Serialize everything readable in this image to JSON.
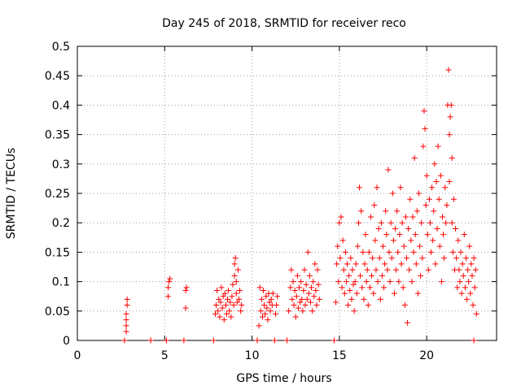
{
  "chart_data": {
    "type": "scatter",
    "title": "Day 245 of 2018, SRMTID for receiver reco",
    "xlabel": "GPS time / hours",
    "ylabel": "SRMTID / TECUs",
    "xlim": [
      0,
      24
    ],
    "ylim": [
      0,
      0.5
    ],
    "xticks": [
      0,
      5,
      10,
      15,
      20
    ],
    "yticks": [
      0,
      0.05,
      0.1,
      0.15,
      0.2,
      0.25,
      0.3,
      0.35,
      0.4,
      0.45,
      0.5
    ],
    "grid": true,
    "marker": "+",
    "color": "#ff0000",
    "series": [
      {
        "name": "SRMTID",
        "points": [
          [
            2.7,
            0.0
          ],
          [
            2.8,
            0.015
          ],
          [
            2.8,
            0.025
          ],
          [
            2.8,
            0.035
          ],
          [
            2.8,
            0.045
          ],
          [
            2.85,
            0.06
          ],
          [
            2.85,
            0.07
          ],
          [
            4.2,
            0.0
          ],
          [
            5.1,
            0.0
          ],
          [
            5.2,
            0.075
          ],
          [
            5.2,
            0.09
          ],
          [
            5.25,
            0.1
          ],
          [
            5.3,
            0.105
          ],
          [
            6.1,
            0.0
          ],
          [
            6.2,
            0.055
          ],
          [
            6.2,
            0.085
          ],
          [
            6.25,
            0.09
          ],
          [
            7.8,
            0.0
          ],
          [
            7.9,
            0.045
          ],
          [
            7.95,
            0.06
          ],
          [
            8.0,
            0.085
          ],
          [
            8.05,
            0.05
          ],
          [
            8.1,
            0.07
          ],
          [
            8.15,
            0.04
          ],
          [
            8.2,
            0.065
          ],
          [
            8.25,
            0.09
          ],
          [
            8.3,
            0.055
          ],
          [
            8.35,
            0.075
          ],
          [
            8.4,
            0.035
          ],
          [
            8.45,
            0.08
          ],
          [
            8.5,
            0.06
          ],
          [
            8.55,
            0.045
          ],
          [
            8.6,
            0.07
          ],
          [
            8.65,
            0.085
          ],
          [
            8.7,
            0.05
          ],
          [
            8.75,
            0.065
          ],
          [
            8.8,
            0.04
          ],
          [
            8.85,
            0.075
          ],
          [
            8.9,
            0.095
          ],
          [
            8.95,
            0.06
          ],
          [
            9.0,
            0.11
          ],
          [
            9.0,
            0.13
          ],
          [
            9.05,
            0.14
          ],
          [
            9.1,
            0.08
          ],
          [
            9.1,
            0.1
          ],
          [
            9.15,
            0.065
          ],
          [
            9.2,
            0.12
          ],
          [
            9.25,
            0.07
          ],
          [
            9.3,
            0.085
          ],
          [
            9.35,
            0.05
          ],
          [
            9.4,
            0.06
          ],
          [
            10.3,
            0.0
          ],
          [
            10.4,
            0.025
          ],
          [
            10.45,
            0.09
          ],
          [
            10.5,
            0.05
          ],
          [
            10.55,
            0.07
          ],
          [
            10.6,
            0.04
          ],
          [
            10.65,
            0.085
          ],
          [
            10.7,
            0.06
          ],
          [
            10.75,
            0.045
          ],
          [
            10.8,
            0.075
          ],
          [
            10.85,
            0.055
          ],
          [
            10.9,
            0.035
          ],
          [
            10.95,
            0.08
          ],
          [
            11.0,
            0.065
          ],
          [
            11.05,
            0.05
          ],
          [
            11.1,
            0.07
          ],
          [
            11.15,
            0.06
          ],
          [
            11.2,
            0.08
          ],
          [
            11.3,
            0.0
          ],
          [
            11.35,
            0.045
          ],
          [
            11.4,
            0.06
          ],
          [
            11.45,
            0.075
          ],
          [
            12.0,
            0.0
          ],
          [
            12.1,
            0.05
          ],
          [
            12.2,
            0.09
          ],
          [
            12.25,
            0.12
          ],
          [
            12.3,
            0.07
          ],
          [
            12.35,
            0.1
          ],
          [
            12.4,
            0.06
          ],
          [
            12.45,
            0.085
          ],
          [
            12.5,
            0.04
          ],
          [
            12.55,
            0.075
          ],
          [
            12.6,
            0.11
          ],
          [
            12.65,
            0.055
          ],
          [
            12.7,
            0.09
          ],
          [
            12.75,
            0.065
          ],
          [
            12.8,
            0.1
          ],
          [
            12.85,
            0.07
          ],
          [
            12.9,
            0.05
          ],
          [
            12.95,
            0.085
          ],
          [
            13.0,
            0.12
          ],
          [
            13.05,
            0.06
          ],
          [
            13.1,
            0.095
          ],
          [
            13.15,
            0.07
          ],
          [
            13.2,
            0.15
          ],
          [
            13.25,
            0.08
          ],
          [
            13.3,
            0.11
          ],
          [
            13.35,
            0.065
          ],
          [
            13.4,
            0.09
          ],
          [
            13.45,
            0.05
          ],
          [
            13.5,
            0.1
          ],
          [
            13.55,
            0.075
          ],
          [
            13.6,
            0.13
          ],
          [
            13.65,
            0.085
          ],
          [
            13.7,
            0.06
          ],
          [
            13.75,
            0.12
          ],
          [
            13.8,
            0.095
          ],
          [
            13.85,
            0.07
          ],
          [
            14.7,
            0.0
          ],
          [
            14.8,
            0.065
          ],
          [
            14.85,
            0.13
          ],
          [
            14.9,
            0.16
          ],
          [
            14.95,
            0.1
          ],
          [
            15.0,
            0.2
          ],
          [
            15.05,
            0.14
          ],
          [
            15.1,
            0.21
          ],
          [
            15.15,
            0.09
          ],
          [
            15.2,
            0.17
          ],
          [
            15.25,
            0.12
          ],
          [
            15.3,
            0.08
          ],
          [
            15.35,
            0.15
          ],
          [
            15.4,
            0.1
          ],
          [
            15.45,
            0.13
          ],
          [
            15.5,
            0.06
          ],
          [
            15.55,
            0.11
          ],
          [
            15.6,
            0.085
          ],
          [
            15.65,
            0.14
          ],
          [
            15.7,
            0.07
          ],
          [
            15.75,
            0.12
          ],
          [
            15.8,
            0.095
          ],
          [
            15.85,
            0.05
          ],
          [
            15.9,
            0.1
          ],
          [
            15.95,
            0.13
          ],
          [
            16.0,
            0.08
          ],
          [
            16.05,
            0.16
          ],
          [
            16.1,
            0.2
          ],
          [
            16.15,
            0.26
          ],
          [
            16.2,
            0.11
          ],
          [
            16.25,
            0.22
          ],
          [
            16.3,
            0.09
          ],
          [
            16.35,
            0.15
          ],
          [
            16.4,
            0.07
          ],
          [
            16.45,
            0.13
          ],
          [
            16.5,
            0.18
          ],
          [
            16.55,
            0.1
          ],
          [
            16.6,
            0.12
          ],
          [
            16.65,
            0.06
          ],
          [
            16.7,
            0.15
          ],
          [
            16.75,
            0.09
          ],
          [
            16.8,
            0.21
          ],
          [
            16.85,
            0.11
          ],
          [
            16.9,
            0.14
          ],
          [
            16.95,
            0.08
          ],
          [
            17.0,
            0.23
          ],
          [
            17.05,
            0.17
          ],
          [
            17.1,
            0.12
          ],
          [
            17.15,
            0.26
          ],
          [
            17.2,
            0.1
          ],
          [
            17.25,
            0.19
          ],
          [
            17.3,
            0.14
          ],
          [
            17.35,
            0.07
          ],
          [
            17.4,
            0.2
          ],
          [
            17.45,
            0.11
          ],
          [
            17.5,
            0.16
          ],
          [
            17.55,
            0.09
          ],
          [
            17.6,
            0.13
          ],
          [
            17.65,
            0.22
          ],
          [
            17.7,
            0.18
          ],
          [
            17.75,
            0.12
          ],
          [
            17.8,
            0.29
          ],
          [
            17.85,
            0.15
          ],
          [
            17.9,
            0.1
          ],
          [
            17.95,
            0.2
          ],
          [
            18.0,
            0.14
          ],
          [
            18.05,
            0.25
          ],
          [
            18.1,
            0.17
          ],
          [
            18.15,
            0.08
          ],
          [
            18.2,
            0.19
          ],
          [
            18.25,
            0.12
          ],
          [
            18.3,
            0.22
          ],
          [
            18.35,
            0.15
          ],
          [
            18.4,
            0.1
          ],
          [
            18.45,
            0.18
          ],
          [
            18.5,
            0.26
          ],
          [
            18.55,
            0.13
          ],
          [
            18.6,
            0.2
          ],
          [
            18.65,
            0.09
          ],
          [
            18.7,
            0.16
          ],
          [
            18.75,
            0.06
          ],
          [
            18.8,
            0.21
          ],
          [
            18.85,
            0.14
          ],
          [
            18.9,
            0.03
          ],
          [
            18.95,
            0.19
          ],
          [
            19.0,
            0.12
          ],
          [
            19.05,
            0.24
          ],
          [
            19.1,
            0.17
          ],
          [
            19.15,
            0.1
          ],
          [
            19.2,
            0.21
          ],
          [
            19.25,
            0.15
          ],
          [
            19.3,
            0.31
          ],
          [
            19.35,
            0.18
          ],
          [
            19.4,
            0.13
          ],
          [
            19.45,
            0.22
          ],
          [
            19.5,
            0.08
          ],
          [
            19.55,
            0.25
          ],
          [
            19.6,
            0.16
          ],
          [
            19.65,
            0.11
          ],
          [
            19.7,
            0.2
          ],
          [
            19.75,
            0.14
          ],
          [
            19.8,
            0.33
          ],
          [
            19.85,
            0.39
          ],
          [
            19.9,
            0.36
          ],
          [
            19.95,
            0.23
          ],
          [
            20.0,
            0.28
          ],
          [
            20.05,
            0.18
          ],
          [
            20.1,
            0.12
          ],
          [
            20.15,
            0.24
          ],
          [
            20.2,
            0.2
          ],
          [
            20.25,
            0.15
          ],
          [
            20.3,
            0.26
          ],
          [
            20.35,
            0.17
          ],
          [
            20.4,
            0.22
          ],
          [
            20.45,
            0.3
          ],
          [
            20.5,
            0.13
          ],
          [
            20.55,
            0.27
          ],
          [
            20.6,
            0.19
          ],
          [
            20.65,
            0.33
          ],
          [
            20.7,
            0.24
          ],
          [
            20.75,
            0.16
          ],
          [
            20.8,
            0.28
          ],
          [
            20.85,
            0.1
          ],
          [
            20.9,
            0.21
          ],
          [
            20.95,
            0.18
          ],
          [
            21.0,
            0.14
          ],
          [
            21.05,
            0.26
          ],
          [
            21.1,
            0.2
          ],
          [
            21.15,
            0.23
          ],
          [
            21.2,
            0.4
          ],
          [
            21.25,
            0.46
          ],
          [
            21.3,
            0.35
          ],
          [
            21.3,
            0.27
          ],
          [
            21.35,
            0.38
          ],
          [
            21.4,
            0.4
          ],
          [
            21.45,
            0.31
          ],
          [
            21.45,
            0.2
          ],
          [
            21.5,
            0.15
          ],
          [
            21.55,
            0.24
          ],
          [
            21.6,
            0.12
          ],
          [
            21.65,
            0.19
          ],
          [
            21.7,
            0.14
          ],
          [
            21.75,
            0.09
          ],
          [
            21.8,
            0.17
          ],
          [
            21.85,
            0.12
          ],
          [
            21.9,
            0.1
          ],
          [
            21.95,
            0.15
          ],
          [
            22.0,
            0.08
          ],
          [
            22.05,
            0.13
          ],
          [
            22.1,
            0.11
          ],
          [
            22.15,
            0.18
          ],
          [
            22.2,
            0.09
          ],
          [
            22.25,
            0.14
          ],
          [
            22.3,
            0.07
          ],
          [
            22.35,
            0.12
          ],
          [
            22.4,
            0.1
          ],
          [
            22.45,
            0.16
          ],
          [
            22.5,
            0.08
          ],
          [
            22.55,
            0.13
          ],
          [
            22.6,
            0.11
          ],
          [
            22.65,
            0.06
          ],
          [
            22.7,
            0.14
          ],
          [
            22.75,
            0.09
          ],
          [
            22.8,
            0.12
          ],
          [
            22.85,
            0.045
          ],
          [
            22.7,
            0.0
          ]
        ]
      }
    ]
  }
}
